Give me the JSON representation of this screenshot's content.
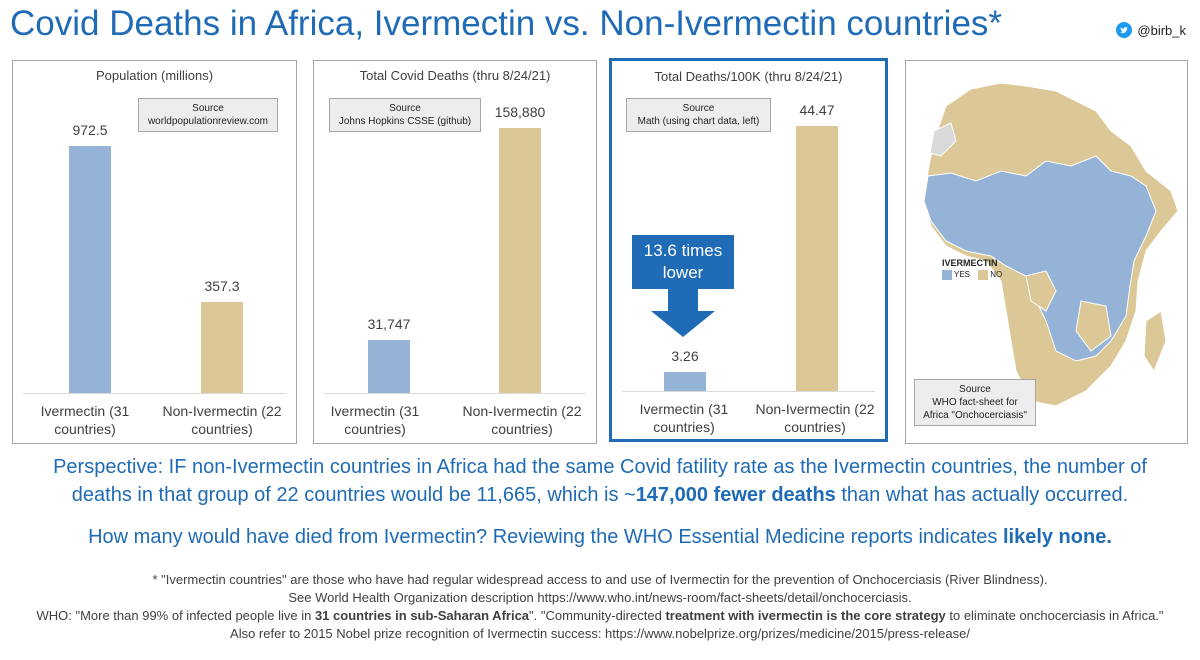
{
  "title": "Covid Deaths in Africa, Ivermectin vs. Non-Ivermectin countries*",
  "handle": "@birb_k",
  "colors": {
    "accent": "#1f6bb5",
    "ivermectin": "#95b3d7",
    "non_ivermectin": "#dbc896",
    "gray_region": "#d9d9d9"
  },
  "icons": {
    "twitter": "twitter-bird-icon"
  },
  "chart_data": [
    {
      "type": "bar",
      "title": "Population (millions)",
      "source_label": "Source",
      "source": "worldpopulationreview.com",
      "categories": [
        "Ivermectin (31 countries)",
        "Non-Ivermectin (22 countries)"
      ],
      "values": [
        972.5,
        357.3
      ],
      "value_labels": [
        "972.5",
        "357.3"
      ],
      "ylim": [
        0,
        1140
      ]
    },
    {
      "type": "bar",
      "title": "Total Covid Deaths (thru 8/24/21)",
      "source_label": "Source",
      "source": "Johns Hopkins CSSE (github)",
      "categories": [
        "Ivermectin (31 countries)",
        "Non-Ivermectin (22 countries)"
      ],
      "values": [
        31747,
        158880
      ],
      "value_labels": [
        "31,747",
        "158,880"
      ],
      "ylim": [
        0,
        174000
      ]
    },
    {
      "type": "bar",
      "title": "Total Deaths/100K (thru 8/24/21)",
      "source_label": "Source",
      "source": "Math (using chart data, left)",
      "categories": [
        "Ivermectin (31 countries)",
        "Non-Ivermectin (22 countries)"
      ],
      "values": [
        3.26,
        44.47
      ],
      "value_labels": [
        "3.26",
        "44.47"
      ],
      "ylim": [
        0,
        48.7
      ],
      "annotation": {
        "line1": "13.6 times",
        "line2": "lower"
      }
    }
  ],
  "map": {
    "legend_title": "IVERMECTIN",
    "legend_yes": "YES",
    "legend_no": "NO",
    "source_label": "Source",
    "source_line1": "WHO fact-sheet for",
    "source_line2": "Africa \"Onchocerciasis\""
  },
  "perspective": {
    "text1": "Perspective: IF non-Ivermectin countries in Africa had the same Covid fatility rate as the Ivermectin countries, the number of",
    "text2a": "deaths in that group of 22 countries would be 11,665, which is ~",
    "text2b": "147,000 fewer deaths",
    "text2c": " than what has actually occurred."
  },
  "question": {
    "text_a": "How many would have died from Ivermectin?  Reviewing the WHO Essential Medicine reports indicates ",
    "text_b": "likely none."
  },
  "footnote": {
    "line1": "* \"Ivermectin countries\" are those who have had regular widespread access to and use of Ivermectin for the prevention of Onchocerciasis (River Blindness).",
    "line2": "See World Health Organization description https://www.who.int/news-room/fact-sheets/detail/onchocerciasis.",
    "line3a": "WHO: \"More than 99% of infected people live in ",
    "line3b": "31 countries in sub-Saharan Africa",
    "line3c": "\". \"Community-directed ",
    "line3d": "treatment with ivermectin is the core strategy",
    "line3e": " to eliminate onchocerciasis in Africa.\"",
    "line4": "Also refer to 2015 Nobel prize recognition of Ivermectin success: https://www.nobelprize.org/prizes/medicine/2015/press-release/"
  }
}
